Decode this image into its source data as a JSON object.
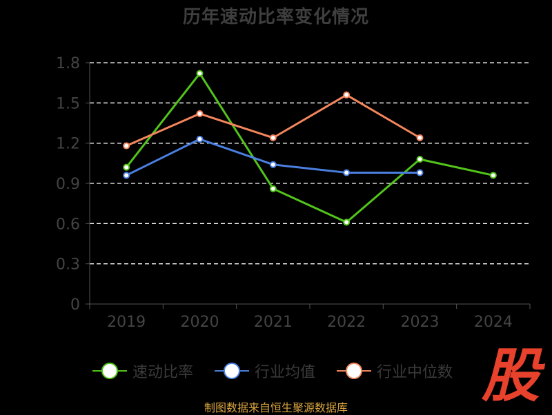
{
  "chart_data": {
    "type": "line",
    "title": "历年速动比率变化情况",
    "categories": [
      "2019",
      "2020",
      "2021",
      "2022",
      "2023",
      "2024"
    ],
    "yticks": [
      "0",
      "0.3",
      "0.6",
      "0.9",
      "1.2",
      "1.5",
      "1.8"
    ],
    "ylim": [
      0,
      1.8
    ],
    "grid": true,
    "legend_position": "bottom",
    "series": [
      {
        "name": "速动比率",
        "color": "#52c41a",
        "values": [
          1.02,
          1.72,
          0.86,
          0.61,
          1.08,
          0.96
        ]
      },
      {
        "name": "行业均值",
        "color": "#4b7fe0",
        "values": [
          0.96,
          1.23,
          1.04,
          0.98,
          0.98,
          null
        ]
      },
      {
        "name": "行业中位数",
        "color": "#f4865d",
        "values": [
          1.18,
          1.42,
          1.24,
          1.56,
          1.24,
          null
        ]
      }
    ]
  },
  "watermark": {
    "text": "股",
    "color": "#e8412c"
  },
  "footer": {
    "source": "制图数据来自恒生聚源数据库"
  }
}
